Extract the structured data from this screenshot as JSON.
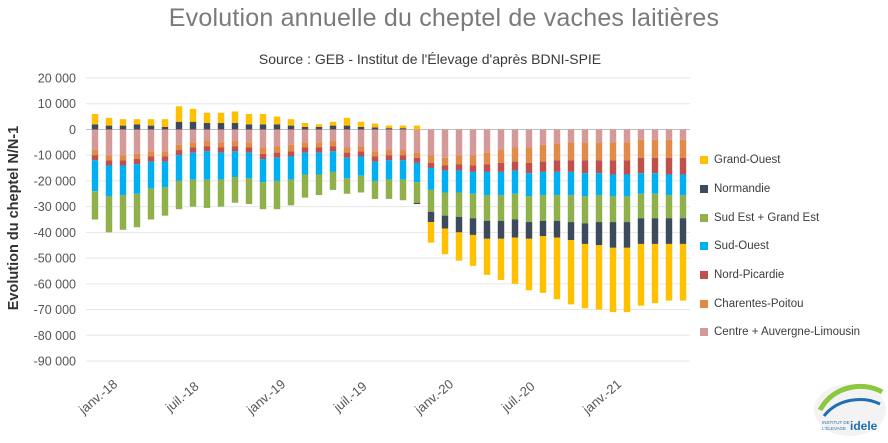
{
  "chart_data": {
    "type": "bar",
    "stacked": true,
    "title": "Evolution annuelle du cheptel de vaches laitières",
    "subtitle": "Source : GEB - Institut de l'Élevage d'après BDNI-SPIE",
    "ylabel": "Evolution du cheptel N/N-1",
    "xlabel": "",
    "ylim": [
      -90000,
      20000
    ],
    "yticks": [
      20000,
      10000,
      0,
      -10000,
      -20000,
      -30000,
      -40000,
      -50000,
      -60000,
      -70000,
      -80000,
      -90000
    ],
    "ytick_labels": [
      "20 000",
      "10 000",
      "0",
      "-10 000",
      "-20 000",
      "-30 000",
      "-40 000",
      "-50 000",
      "-60 000",
      "-70 000",
      "-80 000",
      "-90 000"
    ],
    "xtick_labels": [
      "janv.-18",
      "juil.-18",
      "janv.-19",
      "juil.-19",
      "janv.-20",
      "juil.-20",
      "janv.-21"
    ],
    "xtick_positions": [
      0,
      6,
      12,
      18,
      24,
      30,
      36
    ],
    "grid": true,
    "legend_position": "right",
    "categories": [
      "janv.-18",
      "févr.-18",
      "mars-18",
      "avr.-18",
      "mai-18",
      "juin-18",
      "juil.-18",
      "août-18",
      "sept.-18",
      "oct.-18",
      "nov.-18",
      "déc.-18",
      "janv.-19",
      "févr.-19",
      "mars-19",
      "avr.-19",
      "mai-19",
      "juin-19",
      "juil.-19",
      "août-19",
      "sept.-19",
      "oct.-19",
      "nov.-19",
      "déc.-19",
      "janv.-20",
      "févr.-20",
      "mars-20",
      "avr.-20",
      "mai-20",
      "juin-20",
      "juil.-20",
      "août-20",
      "sept.-20",
      "oct.-20",
      "nov.-20",
      "déc.-20",
      "janv.-21",
      "févr.-21",
      "mars-21",
      "avr.-21",
      "mai-21",
      "juin-21",
      "juil.-21"
    ],
    "series": [
      {
        "name": "Centre + Auvergne-Limousin",
        "color": "#d49a9a",
        "values": [
          -8000,
          -10000,
          -10000,
          -9500,
          -8500,
          -8500,
          -6000,
          -5000,
          -4500,
          -5000,
          -4500,
          -5000,
          -7000,
          -6500,
          -6000,
          -5000,
          -5000,
          -4500,
          -7000,
          -6500,
          -8500,
          -8000,
          -8000,
          -9000,
          -10000,
          -11000,
          -10000,
          -10000,
          -9000,
          -8000,
          -7000,
          -7000,
          -6000,
          -5500,
          -5000,
          -5000,
          -5000,
          -5000,
          -5000,
          -4000,
          -4000,
          -4000,
          -4000
        ]
      },
      {
        "name": "Charentes-Poitou",
        "color": "#e08b4a",
        "values": [
          -2000,
          -2000,
          -2000,
          -2000,
          -2000,
          -2000,
          -2000,
          -2000,
          -2000,
          -2000,
          -2000,
          -2000,
          -2500,
          -2500,
          -2500,
          -2000,
          -2000,
          -2000,
          -2000,
          -2000,
          -2000,
          -2000,
          -2000,
          -2000,
          -3000,
          -3000,
          -3500,
          -4000,
          -4500,
          -5000,
          -5500,
          -6000,
          -6500,
          -6500,
          -7000,
          -7000,
          -7000,
          -7000,
          -7000,
          -7000,
          -7000,
          -7000,
          -7000
        ]
      },
      {
        "name": "Nord-Picardie",
        "color": "#c0504d",
        "values": [
          -2000,
          -2000,
          -2000,
          -2000,
          -2000,
          -2000,
          -2000,
          -2000,
          -2000,
          -2000,
          -2000,
          -2000,
          -2000,
          -2000,
          -2000,
          -2000,
          -2000,
          -2000,
          -2000,
          -2000,
          -2000,
          -2000,
          -2000,
          -2000,
          -2000,
          -2000,
          -2500,
          -2500,
          -3000,
          -3500,
          -3500,
          -4000,
          -4000,
          -4500,
          -4500,
          -5000,
          -5000,
          -5500,
          -5500,
          -6000,
          -6000,
          -6500,
          -6500
        ]
      },
      {
        "name": "Sud-Ouest",
        "color": "#00b0f0",
        "values": [
          -12000,
          -12000,
          -11500,
          -11500,
          -10500,
          -10000,
          -10000,
          -10500,
          -11000,
          -10500,
          -10000,
          -10000,
          -9000,
          -9000,
          -9000,
          -8500,
          -8500,
          -8000,
          -8000,
          -7500,
          -7500,
          -7500,
          -7500,
          -7500,
          -8500,
          -8500,
          -8500,
          -8500,
          -9000,
          -9000,
          -9000,
          -9000,
          -9000,
          -9000,
          -9000,
          -9000,
          -8500,
          -8500,
          -8500,
          -8000,
          -8000,
          -8000,
          -8000
        ]
      },
      {
        "name": "Sud Est + Grand Est",
        "color": "#8fb04a",
        "values": [
          -11000,
          -14000,
          -13500,
          -13000,
          -12000,
          -11000,
          -11000,
          -10500,
          -11000,
          -10500,
          -10000,
          -10000,
          -10500,
          -11000,
          -10000,
          -9000,
          -8000,
          -7000,
          -6000,
          -6500,
          -7000,
          -7500,
          -8000,
          -8000,
          -8500,
          -9000,
          -9500,
          -9500,
          -10000,
          -10000,
          -10000,
          -10000,
          -10000,
          -10000,
          -10500,
          -10500,
          -10500,
          -10000,
          -10000,
          -9500,
          -9500,
          -9000,
          -9000
        ]
      },
      {
        "name": "Normandie",
        "color": "#3d4a5c",
        "values": [
          2000,
          1500,
          1500,
          2000,
          1500,
          1000,
          3000,
          3000,
          2500,
          2500,
          2500,
          2000,
          2000,
          2000,
          1500,
          1000,
          1000,
          1500,
          1500,
          1000,
          800,
          500,
          500,
          -500,
          -4000,
          -5000,
          -6000,
          -6500,
          -7000,
          -7000,
          -7000,
          -6500,
          -6000,
          -6500,
          -7000,
          -8000,
          -9000,
          -10000,
          -10000,
          -10000,
          -10000,
          -10000,
          -10000
        ]
      },
      {
        "name": "Grand-Ouest",
        "color": "#ffc000",
        "values": [
          4000,
          3000,
          2500,
          2000,
          2500,
          3000,
          6000,
          5000,
          4000,
          4000,
          4500,
          4000,
          4000,
          3000,
          2500,
          1500,
          1000,
          1500,
          3000,
          2000,
          1500,
          1000,
          1000,
          1500,
          -8000,
          -10000,
          -11000,
          -12000,
          -14000,
          -16000,
          -18000,
          -20000,
          -22000,
          -24000,
          -25000,
          -25000,
          -25000,
          -25000,
          -25000,
          -24000,
          -23000,
          -22000,
          -22000
        ]
      }
    ]
  },
  "logo": {
    "line1": "INSTITUT DE",
    "line2": "L'ÉLEVAGE",
    "brand": "idele",
    "colors": {
      "green": "#8dc63f",
      "blue": "#1f6fb2"
    }
  }
}
